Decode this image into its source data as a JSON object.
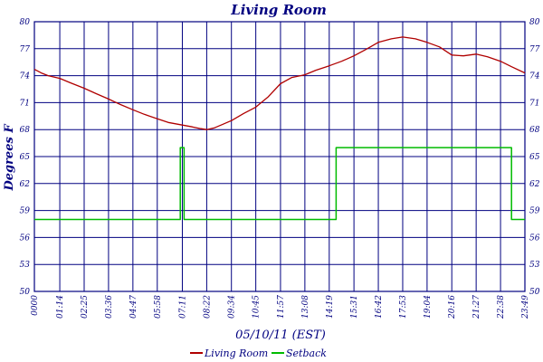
{
  "chart_data": {
    "type": "line",
    "title": "Living Room",
    "xlabel": "05/10/11 (EST)",
    "ylabel": "Degrees F",
    "ylim": [
      50,
      80
    ],
    "yticks": [
      "50",
      "53",
      "56",
      "59",
      "62",
      "65",
      "68",
      "71",
      "74",
      "77",
      "80"
    ],
    "xlim": [
      0,
      1429
    ],
    "xticks": [
      "00:00",
      "01:14",
      "02:25",
      "03:36",
      "04:47",
      "05:58",
      "07:11",
      "08:22",
      "09:34",
      "10:45",
      "11:57",
      "13:08",
      "14:19",
      "15:31",
      "16:42",
      "17:53",
      "19:04",
      "20:16",
      "21:27",
      "22:38",
      "23:49"
    ],
    "xtick_labels": [
      "0000",
      "01:14",
      "02:25",
      "03:36",
      "04:47",
      "05:58",
      "07:11",
      "08:22",
      "09:34",
      "10:45",
      "11:57",
      "13:08",
      "14:19",
      "15:31",
      "16:42",
      "17:53",
      "19:04",
      "20:16",
      "21:27",
      "22:38",
      "23:49"
    ],
    "grid": true,
    "legend_position": "bottom",
    "series": [
      {
        "name": "Living Room",
        "color": "#b00000",
        "x": [
          "00:00",
          "00:20",
          "00:40",
          "01:14",
          "01:45",
          "02:25",
          "03:00",
          "03:36",
          "04:10",
          "04:47",
          "05:20",
          "05:58",
          "06:30",
          "07:11",
          "07:40",
          "08:05",
          "08:22",
          "08:45",
          "09:10",
          "09:34",
          "10:10",
          "10:45",
          "11:20",
          "11:57",
          "12:30",
          "13:08",
          "13:40",
          "14:19",
          "14:55",
          "15:31",
          "16:05",
          "16:42",
          "17:20",
          "17:53",
          "18:30",
          "19:04",
          "19:40",
          "20:16",
          "20:50",
          "21:27",
          "22:00",
          "22:38",
          "23:10",
          "23:49"
        ],
        "values": [
          74.7,
          74.3,
          74.0,
          73.7,
          73.2,
          72.6,
          72.0,
          71.4,
          70.8,
          70.2,
          69.7,
          69.2,
          68.8,
          68.5,
          68.3,
          68.1,
          68.0,
          68.2,
          68.6,
          69.0,
          69.8,
          70.5,
          71.6,
          73.1,
          73.8,
          74.1,
          74.6,
          75.1,
          75.6,
          76.2,
          76.9,
          77.7,
          78.1,
          78.3,
          78.1,
          77.7,
          77.2,
          76.3,
          76.2,
          76.4,
          76.1,
          75.6,
          75.0,
          74.3
        ]
      },
      {
        "name": "Setback",
        "color": "#00bb00",
        "step": true,
        "x": [
          "00:00",
          "07:05",
          "07:05",
          "07:16",
          "07:16",
          "14:39",
          "14:39",
          "23:10",
          "23:10",
          "23:49"
        ],
        "values": [
          58,
          58,
          66,
          66,
          58,
          58,
          66,
          66,
          58,
          58
        ]
      }
    ]
  }
}
